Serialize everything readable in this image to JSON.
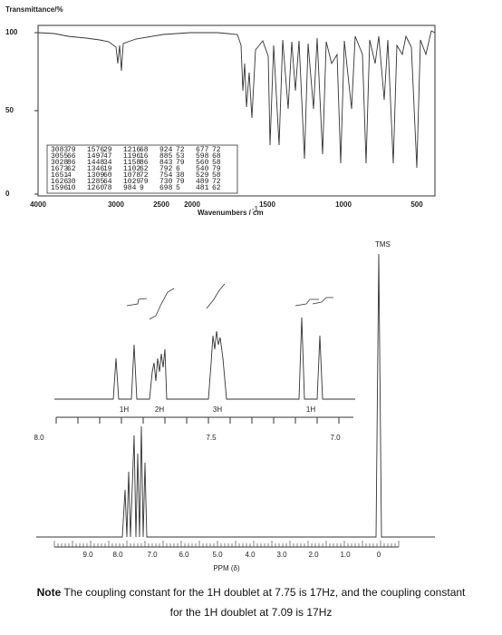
{
  "ir": {
    "y_label": "Transmittance/%",
    "y_ticks": [
      "100",
      "50",
      "0"
    ],
    "x_ticks": [
      "4000",
      "3000",
      "2500",
      "2000",
      "1500",
      "1000",
      "500"
    ],
    "x_label": "Wavenumbers / cm",
    "x_label_sup": "-1",
    "table": [
      [
        "3083",
        "79",
        "1576",
        "29",
        "1216",
        "68",
        "924",
        "72",
        "677",
        "72"
      ],
      [
        "3055",
        "66",
        "1497",
        "47",
        "1196",
        "16",
        "885",
        "53",
        "598",
        "68"
      ],
      [
        "3028",
        "86",
        "1448",
        "34",
        "1158",
        "86",
        "843",
        "79",
        "560",
        "58"
      ],
      [
        "1673",
        "62",
        "1346",
        "19",
        "1102",
        "62",
        "792",
        "6",
        "540",
        "79"
      ],
      [
        "1651",
        "4",
        "1309",
        "60",
        "1078",
        "72",
        "754",
        "38",
        "529",
        "58"
      ],
      [
        "1626",
        "30",
        "1285",
        "64",
        "1029",
        "79",
        "730",
        "79",
        "489",
        "72"
      ],
      [
        "1596",
        "10",
        "1260",
        "78",
        "984",
        "9",
        "698",
        "5",
        "481",
        "62"
      ]
    ]
  },
  "nmr": {
    "tms": "TMS",
    "integrations": [
      "1H",
      "2H",
      "3H",
      "1H"
    ],
    "inset_ticks": [
      "8.0",
      "7.5",
      "7.0"
    ],
    "main_ticks": [
      "9.0",
      "8.0",
      "7.0",
      "6.0",
      "5.0",
      "4.0",
      "3.0",
      "2.0",
      "1.0",
      "0"
    ],
    "x_label": "PPM (δ)"
  },
  "note": {
    "bold": "Note",
    "text": " The coupling constant for the 1H doublet at 7.75 is 17Hz, and the coupling constant for the 1H doublet at 7.09 is 17Hz"
  }
}
